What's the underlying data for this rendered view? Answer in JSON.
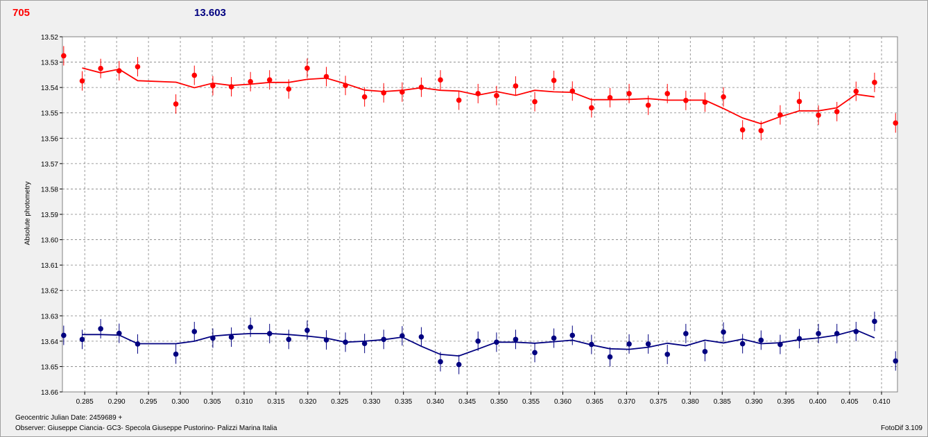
{
  "header": {
    "red_value": "705",
    "blue_value": "13.603"
  },
  "footer": {
    "julian_date": "Geocentric Julian Date: 2459689 +",
    "observer": "Observer: Giuseppe Ciancia- GC3- Specola Giuseppe Pustorino- Palizzi Marina Italia",
    "version": "FotoDif 3.109"
  },
  "colors": {
    "series_red": "#ff0000",
    "series_blue": "#000080",
    "grid": "#808080"
  },
  "chart_data": {
    "type": "scatter",
    "title": "",
    "xlabel": "",
    "ylabel": "Absolute photometry",
    "xlim": [
      0.2815,
      0.4125
    ],
    "ylim": [
      13.52,
      13.66
    ],
    "y_inverted": true,
    "grid": true,
    "x_ticks": [
      "0.285",
      "0.290",
      "0.295",
      "0.300",
      "0.305",
      "0.310",
      "0.315",
      "0.320",
      "0.325",
      "0.330",
      "0.335",
      "0.340",
      "0.345",
      "0.350",
      "0.355",
      "0.360",
      "0.365",
      "0.370",
      "0.375",
      "0.380",
      "0.385",
      "0.390",
      "0.395",
      "0.400",
      "0.405",
      "0.410"
    ],
    "y_ticks": [
      "13.52",
      "13.53",
      "13.54",
      "13.55",
      "13.56",
      "13.57",
      "13.58",
      "13.59",
      "13.60",
      "13.61",
      "13.62",
      "13.63",
      "13.64",
      "13.65",
      "13.66"
    ],
    "x": [
      0.2817,
      0.2846,
      0.2875,
      0.2904,
      0.2933,
      0.2993,
      0.3022,
      0.3051,
      0.308,
      0.311,
      0.314,
      0.317,
      0.3199,
      0.3229,
      0.3259,
      0.3289,
      0.3319,
      0.3348,
      0.3378,
      0.3408,
      0.3437,
      0.3467,
      0.3496,
      0.3526,
      0.3556,
      0.3586,
      0.3615,
      0.3645,
      0.3674,
      0.3704,
      0.3734,
      0.3764,
      0.3793,
      0.3823,
      0.3852,
      0.3882,
      0.3911,
      0.3941,
      0.3971,
      0.4001,
      0.403,
      0.406,
      0.4089,
      0.4122
    ],
    "series": [
      {
        "color": "#ff0000",
        "values": [
          13.5275,
          13.5374,
          13.5325,
          13.5334,
          13.5318,
          13.5465,
          13.5352,
          13.5393,
          13.5397,
          13.5377,
          13.537,
          13.5406,
          13.5324,
          13.5357,
          13.5392,
          13.5437,
          13.5421,
          13.5418,
          13.5399,
          13.537,
          13.545,
          13.5424,
          13.5432,
          13.5394,
          13.5456,
          13.5372,
          13.5414,
          13.548,
          13.544,
          13.5424,
          13.547,
          13.5424,
          13.5451,
          13.5458,
          13.5437,
          13.5567,
          13.557,
          13.5508,
          13.5455,
          13.5509,
          13.5495,
          13.5415,
          13.538,
          13.554
        ],
        "fit": [
          null,
          13.5323,
          13.5342,
          13.5328,
          13.5373,
          13.5379,
          13.5401,
          13.5383,
          13.5392,
          13.5387,
          13.538,
          13.538,
          13.5368,
          13.5363,
          13.5385,
          13.541,
          13.5416,
          13.5411,
          13.5401,
          13.5411,
          13.5414,
          13.543,
          13.5416,
          13.5431,
          13.5411,
          13.5417,
          13.5419,
          13.5448,
          13.5448,
          13.5447,
          13.5444,
          13.545,
          13.545,
          13.545,
          13.5483,
          13.552,
          13.5543,
          13.5515,
          13.5492,
          13.5492,
          13.548,
          13.5427,
          13.5437,
          null
        ]
      },
      {
        "color": "#000080",
        "values": [
          13.6377,
          13.6393,
          13.6351,
          13.6369,
          13.6411,
          13.6451,
          13.6362,
          13.6388,
          13.6384,
          13.6345,
          13.637,
          13.6393,
          13.6357,
          13.6395,
          13.6404,
          13.6409,
          13.6393,
          13.6379,
          13.6383,
          13.6481,
          13.6492,
          13.64,
          13.6404,
          13.6393,
          13.6445,
          13.6388,
          13.6377,
          13.6413,
          13.6462,
          13.6411,
          13.6411,
          13.6452,
          13.637,
          13.6441,
          13.6364,
          13.641,
          13.6396,
          13.6413,
          13.639,
          13.637,
          13.637,
          13.6362,
          13.6322,
          13.6478
        ],
        "fit": [
          null,
          13.6374,
          13.6374,
          13.6376,
          13.641,
          13.641,
          13.64,
          13.638,
          13.6374,
          13.637,
          13.637,
          13.6374,
          13.638,
          13.6388,
          13.6404,
          13.64,
          13.6394,
          13.6384,
          13.642,
          13.6452,
          13.6458,
          13.6431,
          13.6404,
          13.6404,
          13.6408,
          13.6402,
          13.6396,
          13.6415,
          13.643,
          13.6432,
          13.6424,
          13.6408,
          13.6418,
          13.6396,
          13.6407,
          13.6392,
          13.641,
          13.6406,
          13.6394,
          13.6387,
          13.6376,
          13.6356,
          13.6387,
          null
        ]
      }
    ]
  }
}
